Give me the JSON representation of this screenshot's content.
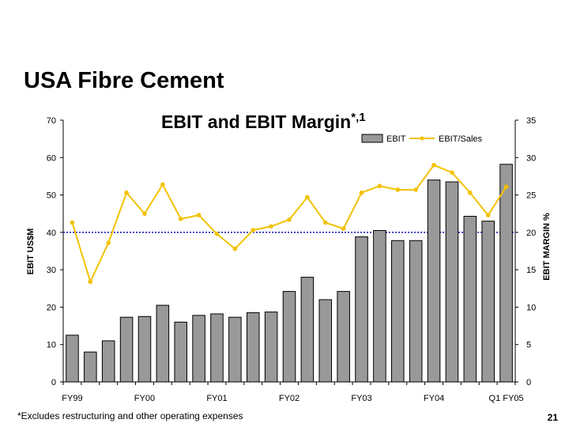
{
  "slide": {
    "title": "USA Fibre Cement",
    "footnote": "*Excludes restructuring and other operating expenses",
    "page_number": "21"
  },
  "chart_data": {
    "type": "bar",
    "title": "EBIT and EBIT Margin",
    "title_superscript": "*,1",
    "ylabel": "EBIT US$M",
    "y2label": "EBIT MARGIN %",
    "ylim": [
      0,
      70
    ],
    "y2lim": [
      0,
      35
    ],
    "yticks": [
      0,
      10,
      20,
      30,
      40,
      50,
      60,
      70
    ],
    "y2ticks": [
      0,
      5,
      10,
      15,
      20,
      25,
      30,
      35
    ],
    "grid": false,
    "legend_position": "top-right",
    "reference_line": {
      "value": 40,
      "axis": "left",
      "color": "#1f1fbf",
      "style": "dotted"
    },
    "x_tick_labels": [
      {
        "label": "FY99",
        "index": 0
      },
      {
        "label": "FY00",
        "index": 4
      },
      {
        "label": "FY01",
        "index": 8
      },
      {
        "label": "FY02",
        "index": 12
      },
      {
        "label": "FY03",
        "index": 16
      },
      {
        "label": "FY04",
        "index": 20
      },
      {
        "label": "Q1 FY05",
        "index": 24
      }
    ],
    "series": [
      {
        "name": "EBIT",
        "type": "bar",
        "axis": "left",
        "color": "#999999",
        "values": [
          12.5,
          8,
          11,
          17.3,
          17.5,
          20.5,
          16,
          17.8,
          18.2,
          17.3,
          18.5,
          18.7,
          24.2,
          28,
          22,
          24.2,
          38.8,
          40.5,
          37.8,
          37.8,
          54,
          53.5,
          44.3,
          43,
          58.2
        ]
      },
      {
        "name": "EBIT/Sales",
        "type": "line",
        "axis": "right",
        "color": "#f2c200",
        "values": [
          21.3,
          13.4,
          18.6,
          25.3,
          22.5,
          26.4,
          21.8,
          22.3,
          19.8,
          17.8,
          20.3,
          20.8,
          21.7,
          24.7,
          21.3,
          20.5,
          25.3,
          26.2,
          25.7,
          25.7,
          29,
          28,
          25.3,
          22.3,
          26.1
        ]
      }
    ]
  }
}
